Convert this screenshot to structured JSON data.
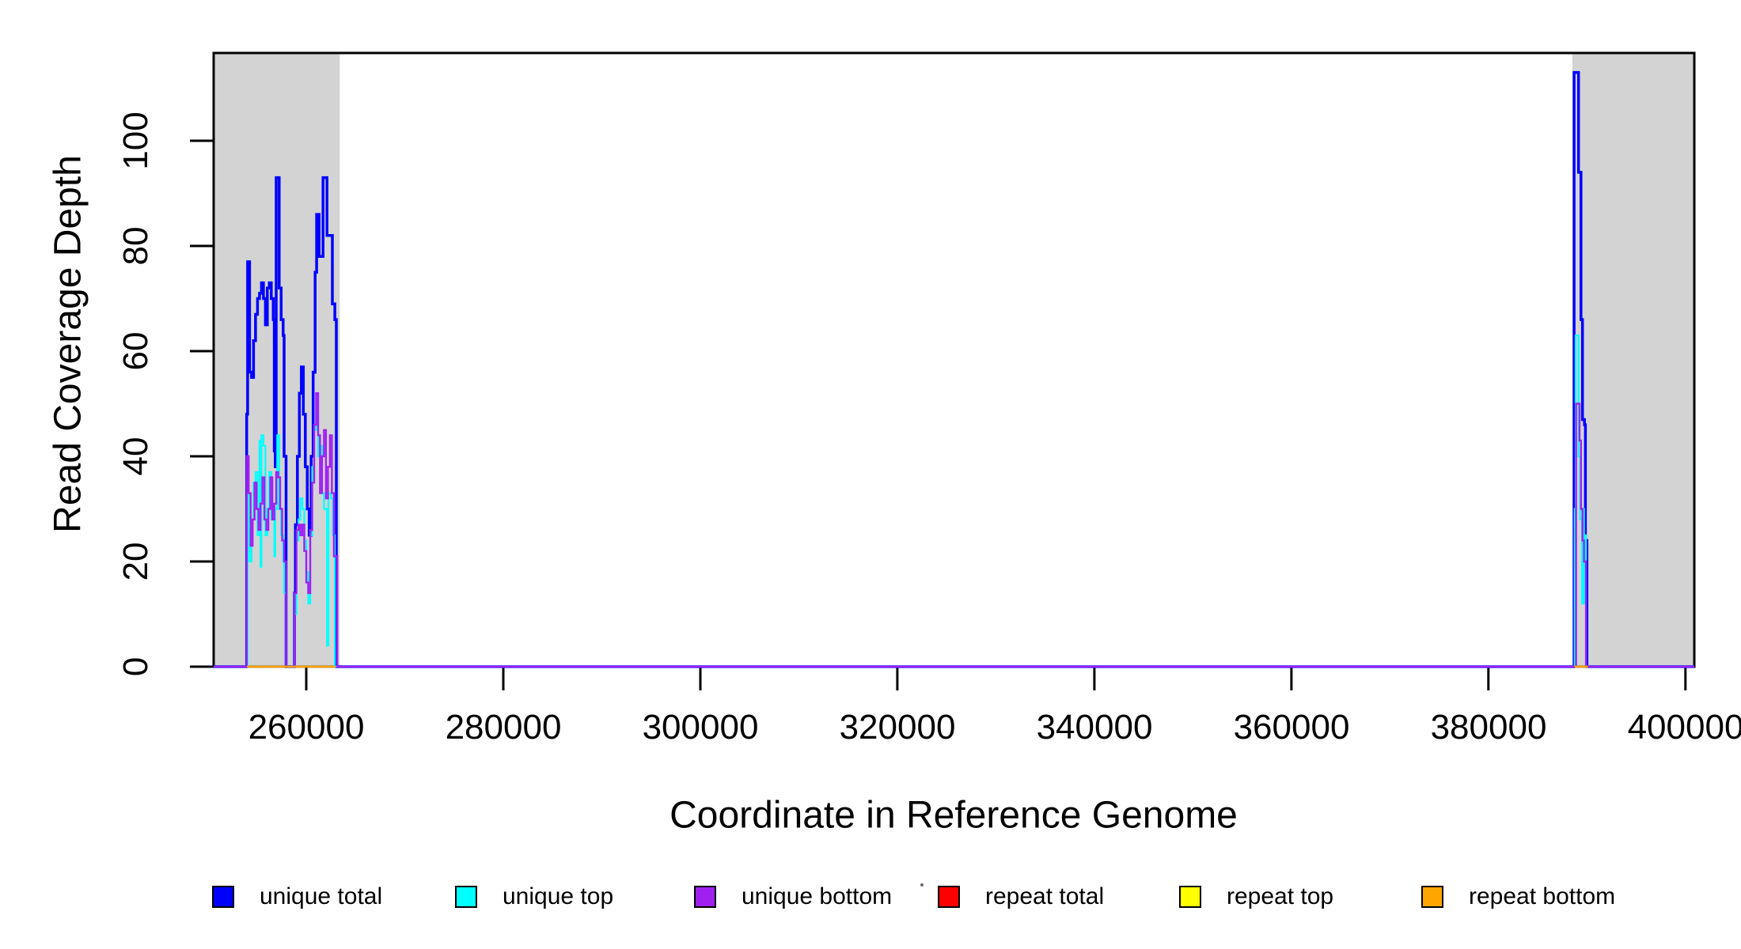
{
  "chart_data": {
    "type": "line",
    "subtype": "step-coverage",
    "title": "",
    "xlabel": "Coordinate in Reference Genome",
    "ylabel": "Read Coverage Depth",
    "xlim": [
      250600,
      400900
    ],
    "ylim": [
      0,
      116.7
    ],
    "grid": false,
    "x_ticks": [
      260000,
      280000,
      300000,
      320000,
      340000,
      360000,
      380000,
      400000
    ],
    "x_tick_labels": [
      "260000",
      "280000",
      "300000",
      "320000",
      "340000",
      "360000",
      "380000",
      "400000"
    ],
    "y_ticks": [
      0,
      20,
      40,
      60,
      80,
      100
    ],
    "y_tick_labels": [
      "0",
      "20",
      "40",
      "60",
      "80",
      "100"
    ],
    "shaded_regions": [
      {
        "name": "target-region-left",
        "x0": 250600,
        "x1": 263400,
        "color": "#D3D3D3"
      },
      {
        "name": "target-region-right",
        "x0": 388510,
        "x1": 400900,
        "color": "#D3D3D3"
      }
    ],
    "legend": {
      "position": "bottom",
      "items": [
        {
          "label": "unique total",
          "color": "#0000FF"
        },
        {
          "label": "unique top",
          "color": "#00FFFF"
        },
        {
          "label": "unique bottom",
          "color": "#A020F0"
        },
        {
          "label": "repeat total",
          "color": "#FF0000"
        },
        {
          "label": "repeat top",
          "color": "#FFFF00"
        },
        {
          "label": "repeat bottom",
          "color": "#FFA500"
        }
      ]
    },
    "series": [
      {
        "name": "unique-total",
        "color": "#0000FF",
        "width": 3.5,
        "segments": [
          [
            [
              250600,
              0
            ],
            [
              253950,
              0
            ],
            [
              253950,
              48
            ],
            [
              254050,
              77
            ],
            [
              254250,
              56
            ],
            [
              254450,
              55
            ],
            [
              254650,
              62
            ],
            [
              254850,
              67
            ],
            [
              255050,
              70
            ],
            [
              255250,
              71
            ],
            [
              255450,
              73
            ],
            [
              255650,
              70
            ],
            [
              255850,
              65
            ],
            [
              256050,
              72
            ],
            [
              256250,
              73
            ],
            [
              256450,
              70
            ],
            [
              256650,
              66
            ],
            [
              256750,
              41
            ],
            [
              256850,
              38
            ],
            [
              256950,
              93
            ],
            [
              257150,
              93
            ],
            [
              257250,
              72
            ],
            [
              257450,
              66
            ],
            [
              257650,
              63
            ],
            [
              257750,
              40
            ],
            [
              257950,
              0
            ],
            [
              258800,
              14
            ],
            [
              258900,
              27
            ],
            [
              259100,
              40
            ],
            [
              259300,
              52
            ],
            [
              259500,
              57
            ],
            [
              259700,
              48
            ],
            [
              259900,
              38
            ],
            [
              260100,
              30
            ],
            [
              260300,
              25
            ],
            [
              260500,
              40
            ],
            [
              260700,
              56
            ],
            [
              260900,
              75
            ],
            [
              261050,
              86
            ],
            [
              261300,
              78
            ],
            [
              261700,
              93
            ],
            [
              262100,
              82
            ],
            [
              262650,
              69
            ],
            [
              262900,
              66
            ],
            [
              263050,
              0
            ],
            [
              388700,
              0
            ],
            [
              388700,
              113
            ],
            [
              389150,
              94
            ],
            [
              389400,
              66
            ],
            [
              389550,
              47
            ],
            [
              389750,
              46
            ],
            [
              389850,
              24
            ],
            [
              390000,
              0
            ],
            [
              400900,
              0
            ]
          ]
        ]
      },
      {
        "name": "unique-top",
        "color": "#00FFFF",
        "width": 2.2,
        "segments": [
          [
            [
              250600,
              0
            ],
            [
              254050,
              0
            ],
            [
              254050,
              33
            ],
            [
              254250,
              20
            ],
            [
              254450,
              28
            ],
            [
              254650,
              35
            ],
            [
              254850,
              37
            ],
            [
              255050,
              25
            ],
            [
              255250,
              43
            ],
            [
              255350,
              19
            ],
            [
              255450,
              44
            ],
            [
              255650,
              42
            ],
            [
              255850,
              25
            ],
            [
              256050,
              30
            ],
            [
              256250,
              37
            ],
            [
              256450,
              28
            ],
            [
              256650,
              31
            ],
            [
              256750,
              21
            ],
            [
              256850,
              30
            ],
            [
              257050,
              44
            ],
            [
              257250,
              30
            ],
            [
              257450,
              25
            ],
            [
              257650,
              20
            ],
            [
              257750,
              14
            ],
            [
              257950,
              0
            ],
            [
              258800,
              10
            ],
            [
              259000,
              24
            ],
            [
              259200,
              28
            ],
            [
              259400,
              32
            ],
            [
              259600,
              30
            ],
            [
              259800,
              24
            ],
            [
              260000,
              18
            ],
            [
              260200,
              12
            ],
            [
              260400,
              25
            ],
            [
              260600,
              38
            ],
            [
              260800,
              45
            ],
            [
              261000,
              48
            ],
            [
              261200,
              40
            ],
            [
              261400,
              42
            ],
            [
              261600,
              33
            ],
            [
              261800,
              30
            ],
            [
              262000,
              30
            ],
            [
              262100,
              4
            ],
            [
              262250,
              33
            ],
            [
              262500,
              32
            ],
            [
              262700,
              25
            ],
            [
              262900,
              0
            ],
            [
              388750,
              0
            ],
            [
              388750,
              30
            ],
            [
              388850,
              63
            ],
            [
              389050,
              63
            ],
            [
              389150,
              40
            ],
            [
              389300,
              28
            ],
            [
              389500,
              12
            ],
            [
              389600,
              30
            ],
            [
              389700,
              12
            ],
            [
              389800,
              25
            ],
            [
              389900,
              0
            ],
            [
              400900,
              0
            ]
          ]
        ]
      },
      {
        "name": "unique-bottom",
        "color": "#A020F0",
        "width": 2.4,
        "segments": [
          [
            [
              250600,
              0
            ],
            [
              253950,
              0
            ],
            [
              253950,
              40
            ],
            [
              254150,
              33
            ],
            [
              254350,
              23
            ],
            [
              254550,
              28
            ],
            [
              254750,
              35
            ],
            [
              254950,
              30
            ],
            [
              255150,
              26
            ],
            [
              255350,
              31
            ],
            [
              255550,
              36
            ],
            [
              255750,
              28
            ],
            [
              255950,
              26
            ],
            [
              256150,
              30
            ],
            [
              256350,
              36
            ],
            [
              256550,
              28
            ],
            [
              256750,
              31
            ],
            [
              256950,
              37
            ],
            [
              257150,
              36
            ],
            [
              257350,
              30
            ],
            [
              257550,
              24
            ],
            [
              257750,
              20
            ],
            [
              257950,
              0
            ],
            [
              258800,
              14
            ],
            [
              259000,
              26
            ],
            [
              259200,
              27
            ],
            [
              259400,
              25
            ],
            [
              259600,
              27
            ],
            [
              259800,
              22
            ],
            [
              260000,
              16
            ],
            [
              260200,
              14
            ],
            [
              260400,
              26
            ],
            [
              260600,
              35
            ],
            [
              260800,
              46
            ],
            [
              261000,
              52
            ],
            [
              261200,
              44
            ],
            [
              261400,
              33
            ],
            [
              261600,
              40
            ],
            [
              261800,
              45
            ],
            [
              262000,
              32
            ],
            [
              262200,
              38
            ],
            [
              262400,
              44
            ],
            [
              262600,
              33
            ],
            [
              262800,
              21
            ],
            [
              263150,
              0
            ],
            [
              388900,
              0
            ],
            [
              388900,
              50
            ],
            [
              389250,
              43
            ],
            [
              389400,
              30
            ],
            [
              389550,
              24
            ],
            [
              389700,
              20
            ],
            [
              389900,
              0
            ],
            [
              400900,
              0
            ]
          ]
        ]
      },
      {
        "name": "repeat-total",
        "color": "#FF0000",
        "width": 2.2,
        "segments": [
          [
            [
              254000,
              0
            ],
            [
              262950,
              0
            ]
          ],
          [
            [
              388750,
              0
            ],
            [
              390100,
              0
            ]
          ]
        ]
      },
      {
        "name": "repeat-top",
        "color": "#FFFF00",
        "width": 2.2,
        "segments": [
          [
            [
              254000,
              0
            ],
            [
              262950,
              0
            ]
          ],
          [
            [
              388750,
              0
            ],
            [
              390100,
              0
            ]
          ]
        ]
      },
      {
        "name": "repeat-bottom",
        "color": "#FFA500",
        "width": 2.6,
        "segments": [
          [
            [
              254000,
              0
            ],
            [
              262950,
              0
            ]
          ],
          [
            [
              388750,
              0
            ],
            [
              390100,
              0
            ]
          ]
        ]
      }
    ]
  }
}
